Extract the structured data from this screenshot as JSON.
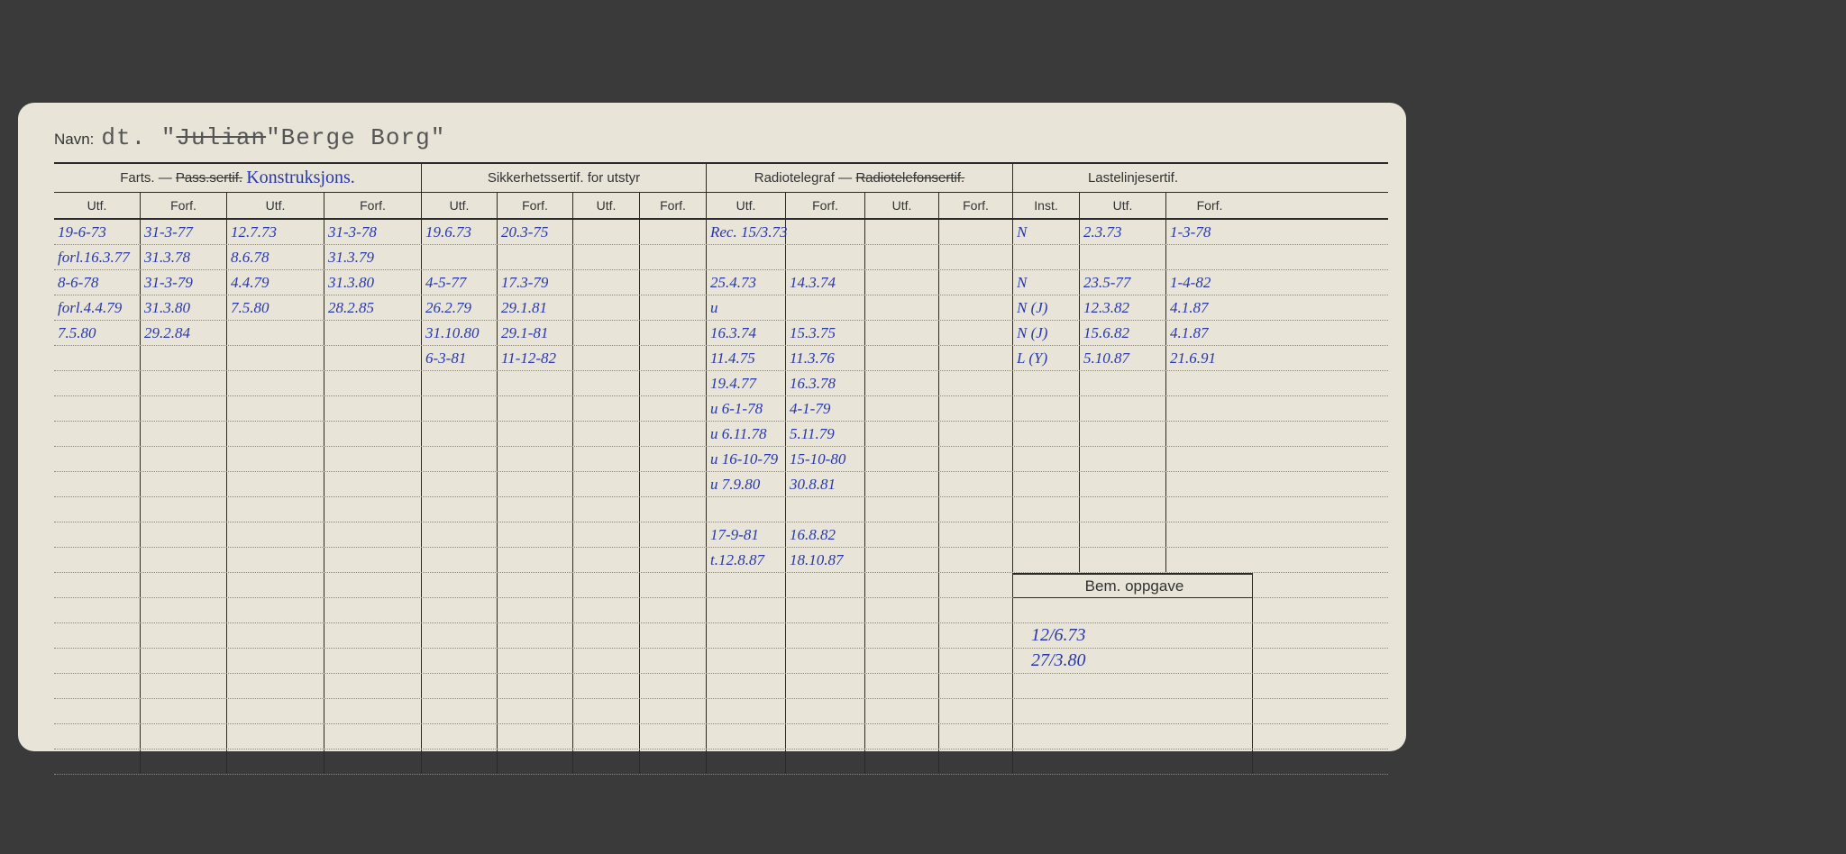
{
  "labels": {
    "navn": "Navn:",
    "farts": "Farts. —",
    "pass": "Pass.sertif.",
    "farts_annot": "Konstruksjons.",
    "sikkerhet": "Sikkerhetssertif. for utstyr",
    "radio": "Radiotelegraf —",
    "radio_strike": "Radiotelefonsertif.",
    "laste": "Lastelinjesertif.",
    "utf": "Utf.",
    "forf": "Forf.",
    "inst": "Inst.",
    "bem": "Bem. oppgave"
  },
  "title": {
    "prefix": "dt. \"",
    "struck": "Julian",
    "suffix": "\"Berge Borg\""
  },
  "colors": {
    "card_bg": "#e8e4d8",
    "ink": "#2838a8",
    "print": "#333333",
    "rule": "#2a2a2a"
  },
  "rows": [
    {
      "f_u1": "19-6-73",
      "f_f1": "31-3-77",
      "f_u2": "12.7.73",
      "f_f2": "31-3-78",
      "s_u1": "19.6.73",
      "s_f1": "20.3-75",
      "r_u1": "Rec. 15/3.73",
      "r_f1": "",
      "l_i": "N",
      "l_u": "2.3.73",
      "l_f": "1-3-78"
    },
    {
      "f_u1": "forl.16.3.77",
      "f_f1": "31.3.78",
      "f_u2": "8.6.78",
      "f_f2": "31.3.79",
      "s_u1": "",
      "s_f1": "",
      "r_u1": "",
      "r_f1": "",
      "l_i": "",
      "l_u": "",
      "l_f": ""
    },
    {
      "f_u1": "8-6-78",
      "f_f1": "31-3-79",
      "f_u2": "4.4.79",
      "f_f2": "31.3.80",
      "s_u1": "4-5-77",
      "s_f1": "17.3-79",
      "r_u1": "25.4.73",
      "r_f1": "14.3.74",
      "l_i": "N",
      "l_u": "23.5-77",
      "l_f": "1-4-82"
    },
    {
      "f_u1": "forl.4.4.79",
      "f_f1": "31.3.80",
      "f_u2": "7.5.80",
      "f_f2": "28.2.85",
      "s_u1": "26.2.79",
      "s_f1": "29.1.81",
      "r_u1": "u",
      "r_f1": "",
      "l_i": "N (J)",
      "l_u": "12.3.82",
      "l_f": "4.1.87"
    },
    {
      "f_u1": "7.5.80",
      "f_f1": "29.2.84",
      "f_u2": "",
      "f_f2": "",
      "s_u1": "31.10.80",
      "s_f1": "29.1-81",
      "r_u1": "16.3.74",
      "r_f1": "15.3.75",
      "l_i": "N (J)",
      "l_u": "15.6.82",
      "l_f": "4.1.87"
    },
    {
      "f_u1": "",
      "f_f1": "",
      "f_u2": "",
      "f_f2": "",
      "s_u1": "6-3-81",
      "s_f1": "11-12-82",
      "r_u1": "11.4.75",
      "r_f1": "11.3.76",
      "l_i": "L (Y)",
      "l_u": "5.10.87",
      "l_f": "21.6.91"
    },
    {
      "f_u1": "",
      "f_f1": "",
      "f_u2": "",
      "f_f2": "",
      "s_u1": "",
      "s_f1": "",
      "r_u1": "19.4.77",
      "r_f1": "16.3.78",
      "l_i": "",
      "l_u": "",
      "l_f": ""
    },
    {
      "f_u1": "",
      "f_f1": "",
      "f_u2": "",
      "f_f2": "",
      "s_u1": "",
      "s_f1": "",
      "r_u1": "u 6-1-78",
      "r_f1": "4-1-79",
      "l_i": "",
      "l_u": "",
      "l_f": ""
    },
    {
      "f_u1": "",
      "f_f1": "",
      "f_u2": "",
      "f_f2": "",
      "s_u1": "",
      "s_f1": "",
      "r_u1": "u 6.11.78",
      "r_f1": "5.11.79",
      "l_i": "",
      "l_u": "",
      "l_f": ""
    },
    {
      "f_u1": "",
      "f_f1": "",
      "f_u2": "",
      "f_f2": "",
      "s_u1": "",
      "s_f1": "",
      "r_u1": "u 16-10-79",
      "r_f1": "15-10-80",
      "l_i": "",
      "l_u": "",
      "l_f": ""
    },
    {
      "f_u1": "",
      "f_f1": "",
      "f_u2": "",
      "f_f2": "",
      "s_u1": "",
      "s_f1": "",
      "r_u1": "u 7.9.80",
      "r_f1": "30.8.81",
      "l_i": "",
      "l_u": "",
      "l_f": ""
    },
    {
      "f_u1": "",
      "f_f1": "",
      "f_u2": "",
      "f_f2": "",
      "s_u1": "",
      "s_f1": "",
      "r_u1": "",
      "r_f1": "",
      "l_i": "",
      "l_u": "",
      "l_f": ""
    },
    {
      "f_u1": "",
      "f_f1": "",
      "f_u2": "",
      "f_f2": "",
      "s_u1": "",
      "s_f1": "",
      "r_u1": "17-9-81",
      "r_f1": "16.8.82",
      "l_i": "",
      "l_u": "",
      "l_f": ""
    },
    {
      "f_u1": "",
      "f_f1": "",
      "f_u2": "",
      "f_f2": "",
      "s_u1": "",
      "s_f1": "",
      "r_u1": "t.12.8.87",
      "r_f1": "18.10.87",
      "l_i": "",
      "l_u": "",
      "l_f": ""
    }
  ],
  "bem_rows": [
    "",
    "12/6.73",
    "27/3.80",
    "",
    "",
    "",
    ""
  ],
  "extra_blank_rows": 7
}
